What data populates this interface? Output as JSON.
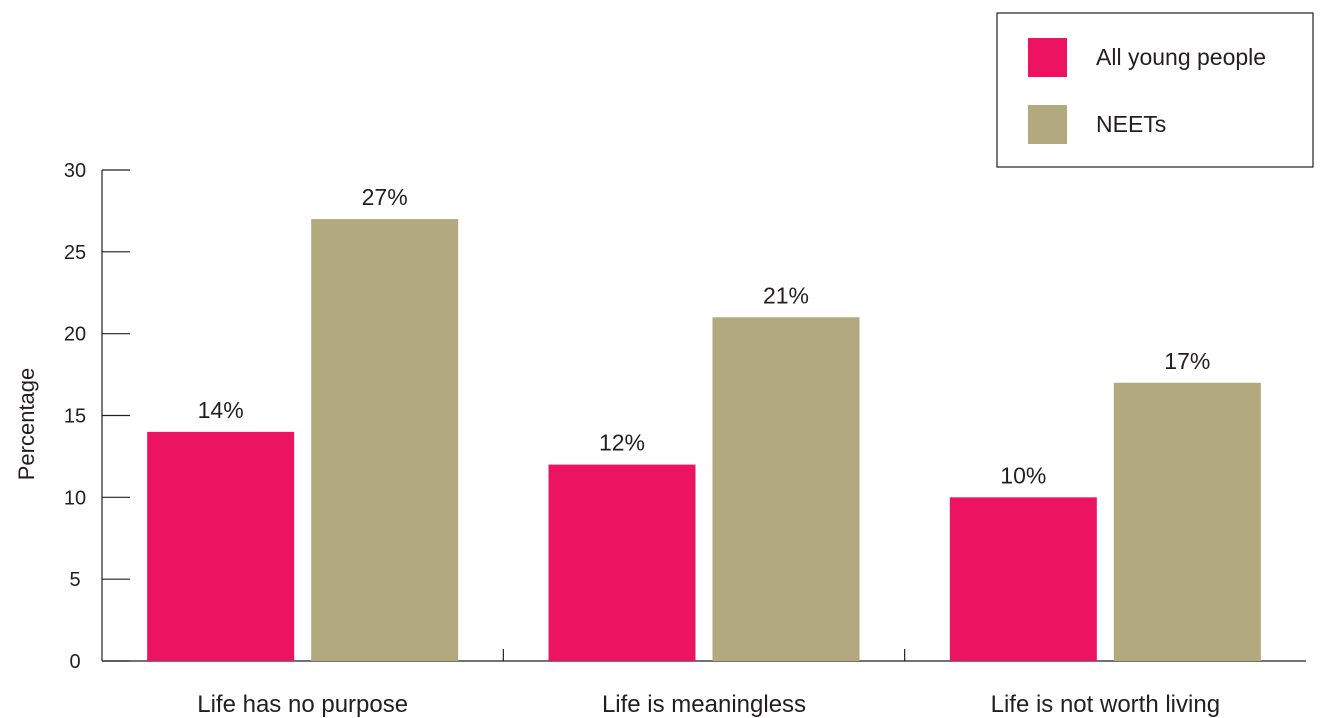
{
  "chart_data": {
    "type": "bar",
    "categories": [
      "Life has no purpose",
      "Life is meaningless",
      "Life is not worth living"
    ],
    "series": [
      {
        "name": "All young people",
        "values": [
          14,
          12,
          10
        ],
        "labels": [
          "14%",
          "12%",
          "10%"
        ],
        "color": "#ec1461"
      },
      {
        "name": "NEETs",
        "values": [
          27,
          21,
          17
        ],
        "labels": [
          "27%",
          "21%",
          "17%"
        ],
        "color": "#b2a97e"
      }
    ],
    "ylabel": "Percentage",
    "xlabel": "",
    "ylim": [
      0,
      30
    ],
    "yticks": [
      "0",
      "5",
      "10",
      "15",
      "20",
      "25",
      "30"
    ],
    "legend_position": "top-right",
    "grid": false
  }
}
